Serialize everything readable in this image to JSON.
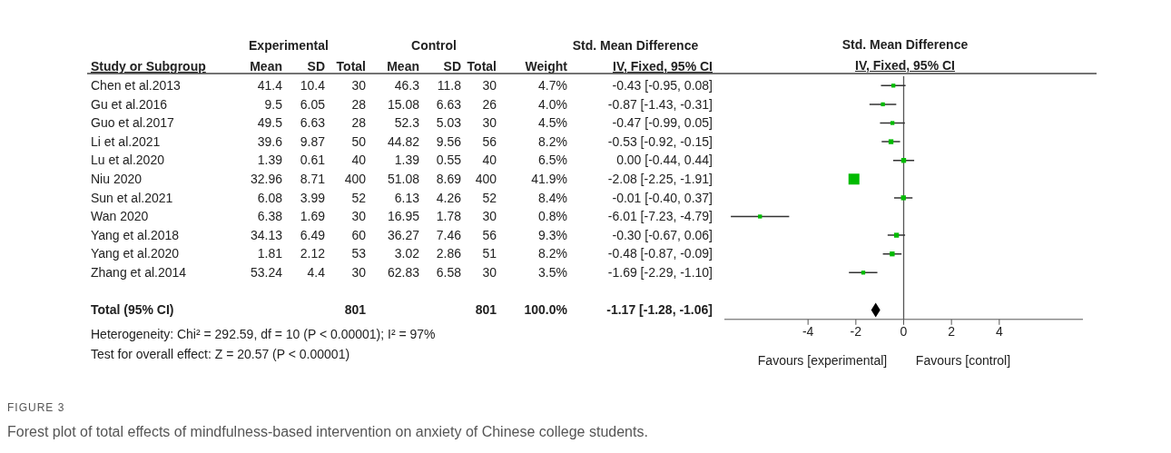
{
  "chart_data": [
    {
      "type": "other",
      "ylabel": "Study or Subgroup",
      "categories": [
        "Chen et al.2013",
        "Gu et al.2016",
        "Guo et al.2017",
        "Li et al.2021",
        "Lu et al.2020",
        "Niu 2020",
        "Sun et al.2021",
        "Wan 2020",
        "Yang et al.2018",
        "Yang et al.2020",
        "Zhang et al.2014",
        null,
        "Total (95% CI)"
      ],
      "data_labels": true,
      "series": [
        {
          "name": "Mean",
          "values": [
            41.4,
            9.5,
            49.5,
            39.6,
            1.39,
            32.96,
            6.08,
            6.38,
            34.13,
            1.81,
            53.24,
            null,
            null
          ]
        },
        {
          "name": "SD",
          "values": [
            10.4,
            6.05,
            6.63,
            9.87,
            0.61,
            8.71,
            3.99,
            1.69,
            6.49,
            2.12,
            4.4,
            null,
            null
          ]
        },
        {
          "name": "Total",
          "values": [
            30,
            28,
            28,
            50,
            40,
            400,
            52,
            30,
            60,
            53,
            30,
            null,
            801
          ]
        },
        {
          "name": "Mean",
          "values": [
            46.3,
            15.08,
            52.3,
            44.82,
            1.39,
            51.08,
            6.13,
            16.95,
            36.27,
            3.02,
            62.83,
            null,
            null
          ]
        },
        {
          "name": "SD",
          "values": [
            11.8,
            6.63,
            5.03,
            9.56,
            0.55,
            8.69,
            4.26,
            1.78,
            7.46,
            2.86,
            6.58,
            null,
            null
          ]
        },
        {
          "name": "Total",
          "values": [
            30,
            26,
            30,
            56,
            40,
            400,
            52,
            30,
            56,
            51,
            30,
            null,
            801
          ]
        },
        {
          "name": "Weight",
          "values": [
            4.7,
            4.0,
            4.5,
            8.2,
            6.5,
            41.9,
            8.4,
            0.8,
            9.3,
            8.2,
            3.5,
            null,
            100.0
          ],
          "value_labels": [
            "4.7%",
            "4.0%",
            "4.5%",
            "8.2%",
            "6.5%",
            "41.9%",
            "8.4%",
            "0.8%",
            "9.3%",
            "8.2%",
            "3.5%",
            null,
            "100.0%"
          ]
        },
        {
          "name": "IV, Fixed, 95% CI",
          "values": [
            -0.43,
            -0.87,
            -0.47,
            -0.53,
            0.0,
            -2.08,
            -0.01,
            -6.01,
            -0.3,
            -0.48,
            -1.69,
            null,
            -1.17
          ],
          "value_labels": [
            "-0.43 [-0.95, 0.08]",
            "-0.87 [-1.43, -0.31]",
            "-0.47 [-0.99, 0.05]",
            "-0.53 [-0.92, -0.15]",
            "0.00 [-0.44, 0.44]",
            "-2.08 [-2.25, -1.91]",
            "-0.01 [-0.40, 0.37]",
            "-6.01 [-7.23, -4.79]",
            "-0.30 [-0.67, 0.06]",
            "-0.48 [-0.87, -0.09]",
            "-1.69 [-2.29, -1.10]",
            null,
            "-1.17 [-1.28, -1.06]"
          ]
        }
      ],
      "annotations": [
        "Experimental",
        "Control",
        "Std. Mean Difference",
        "Heterogeneity: Chi² = 292.59, df = 10 (P < 0.00001); I² = 97%",
        "Test for overall effect: Z = 20.57 (P < 0.00001)"
      ]
    },
    {
      "type": "scatter",
      "title": "Std. Mean Difference",
      "subtitle": "IV, Fixed, 95% CI",
      "orientation": "horizontal",
      "tick_labels": "x",
      "grid": false,
      "xlim": [
        -7.5,
        7.5
      ],
      "xticks": [
        -4,
        -2,
        0,
        2,
        4
      ],
      "ref_lines": [
        {
          "axis": "x",
          "value": 0,
          "color": "#555555"
        }
      ],
      "series": [
        {
          "marker": "square",
          "color": "#00bb00",
          "values": [
            -0.43,
            -0.87,
            -0.47,
            -0.53,
            0.0,
            -2.08,
            -0.01,
            -6.01,
            -0.3,
            -0.48,
            -1.69,
            null,
            null
          ],
          "errors": [
            [
              -0.95,
              0.08
            ],
            [
              -1.43,
              -0.31
            ],
            [
              -0.99,
              0.05
            ],
            [
              -0.92,
              -0.15
            ],
            [
              -0.44,
              0.44
            ],
            null,
            [
              -0.4,
              0.37
            ],
            [
              -7.23,
              -4.79
            ],
            [
              -0.67,
              0.06
            ],
            [
              -0.87,
              -0.09
            ],
            [
              -2.29,
              -1.1
            ],
            null,
            null
          ],
          "sizes": [
            0.13,
            0.13,
            0.13,
            0.2,
            0.2,
            1,
            0.2,
            0.13,
            0.2,
            0.2,
            0.13,
            null,
            null
          ]
        },
        {
          "marker": "diamond",
          "color": "#000000",
          "values": [
            null,
            null,
            null,
            null,
            null,
            null,
            null,
            null,
            null,
            null,
            null,
            null,
            -1.17
          ]
        }
      ],
      "annotations": [
        "Favours [experimental]",
        "Favours [control]",
        "FIGURE 3",
        "Forest plot of total effects of mindfulness-based intervention on anxiety of Chinese college students."
      ]
    }
  ]
}
